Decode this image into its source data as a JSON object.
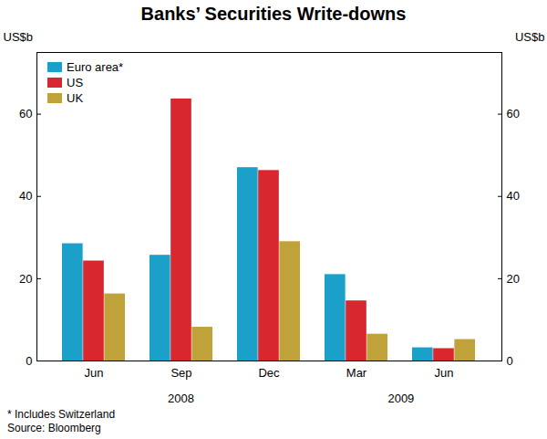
{
  "chart_data": {
    "type": "bar",
    "title": "Banks’ Securities Write-downs",
    "ylabel": "US$b",
    "categories": [
      "Jun",
      "Sep",
      "Dec",
      "Mar",
      "Jun"
    ],
    "category_groups": [
      "2008",
      "2008",
      "2008",
      "2009",
      "2009"
    ],
    "series": [
      {
        "name": "Euro area*",
        "color": "#1ba1c9",
        "values": [
          28.5,
          25.7,
          47.0,
          21.0,
          3.2
        ]
      },
      {
        "name": "US",
        "color": "#d8272e",
        "values": [
          24.3,
          63.7,
          46.3,
          14.6,
          3.0
        ]
      },
      {
        "name": "UK",
        "color": "#bfa33a",
        "values": [
          16.3,
          8.2,
          29.0,
          6.5,
          5.2
        ]
      }
    ],
    "ylim": [
      0,
      75
    ],
    "yticks": [
      0,
      20,
      40,
      60
    ],
    "grid": false,
    "legend": "top-left",
    "notes": [
      "* Includes Switzerland",
      "Source: Bloomberg"
    ]
  }
}
